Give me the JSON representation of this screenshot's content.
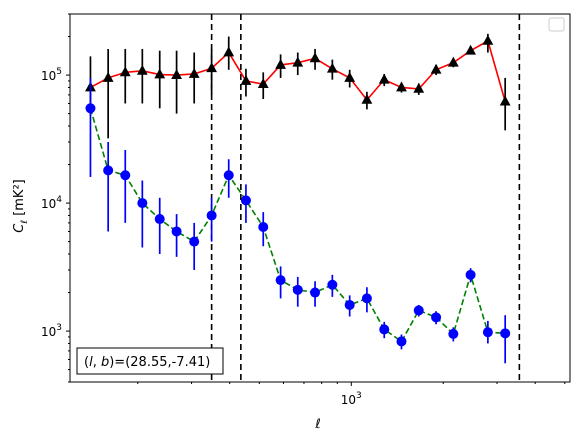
{
  "chart_data": {
    "type": "scatter",
    "xlabel": "ℓ",
    "ylabel": "C",
    "ylabel_sub": "ℓ",
    "ylabel_unit": " [mK²]",
    "xscale": "log",
    "yscale": "log",
    "xlim": [
      120,
      5200
    ],
    "ylim": [
      400,
      300000
    ],
    "x_tick_labels": [
      {
        "base": "10",
        "exp": "3",
        "value": 1000
      }
    ],
    "y_tick_labels": [
      {
        "base": "10",
        "exp": "3",
        "value": 1000
      },
      {
        "base": "10",
        "exp": "4",
        "value": 10000
      },
      {
        "base": "10",
        "exp": "5",
        "value": 100000
      }
    ],
    "annotation": "(l, b)=(28.55,-7.41)",
    "annotation_parts": {
      "prefix": "(",
      "l": "l",
      "sep": ", ",
      "b": "b",
      "suffix": ")=(28.55,-7.41)"
    },
    "legend": {
      "position": "top-right",
      "entries": []
    },
    "vlines": [
      349,
      435,
      3550
    ],
    "series": [
      {
        "color": "#000000",
        "marker": "triangle",
        "line_color": "#ff0000",
        "line_style": "solid",
        "points": [
          {
            "x": 140,
            "y": 80000,
            "lo": 48000,
            "hi": 140000
          },
          {
            "x": 160,
            "y": 95000,
            "lo": 32000,
            "hi": 160000
          },
          {
            "x": 182,
            "y": 105000,
            "lo": 60000,
            "hi": 160000
          },
          {
            "x": 207,
            "y": 108000,
            "lo": 60000,
            "hi": 160000
          },
          {
            "x": 236,
            "y": 101000,
            "lo": 55000,
            "hi": 155000
          },
          {
            "x": 268,
            "y": 100000,
            "lo": 50000,
            "hi": 155000
          },
          {
            "x": 306,
            "y": 102000,
            "lo": 60000,
            "hi": 150000
          },
          {
            "x": 349,
            "y": 113000,
            "lo": 70000,
            "hi": 160000
          },
          {
            "x": 397,
            "y": 150000,
            "lo": 110000,
            "hi": 200000
          },
          {
            "x": 452,
            "y": 90000,
            "lo": 68000,
            "hi": 112000
          },
          {
            "x": 515,
            "y": 85000,
            "lo": 65000,
            "hi": 105000
          },
          {
            "x": 587,
            "y": 120000,
            "lo": 95000,
            "hi": 145000
          },
          {
            "x": 668,
            "y": 125000,
            "lo": 100000,
            "hi": 150000
          },
          {
            "x": 761,
            "y": 135000,
            "lo": 110000,
            "hi": 160000
          },
          {
            "x": 867,
            "y": 112000,
            "lo": 92000,
            "hi": 132000
          },
          {
            "x": 988,
            "y": 95000,
            "lo": 80000,
            "hi": 110000
          },
          {
            "x": 1125,
            "y": 64000,
            "lo": 54000,
            "hi": 74000
          },
          {
            "x": 1282,
            "y": 92000,
            "lo": 82000,
            "hi": 102000
          },
          {
            "x": 1460,
            "y": 80000,
            "lo": 73000,
            "hi": 87000
          },
          {
            "x": 1663,
            "y": 78000,
            "lo": 70000,
            "hi": 86000
          },
          {
            "x": 1895,
            "y": 110000,
            "lo": 100000,
            "hi": 120000
          },
          {
            "x": 2158,
            "y": 125000,
            "lo": 115000,
            "hi": 135000
          },
          {
            "x": 2458,
            "y": 155000,
            "lo": 145000,
            "hi": 165000
          },
          {
            "x": 2800,
            "y": 185000,
            "lo": 150000,
            "hi": 210000
          },
          {
            "x": 3190,
            "y": 62000,
            "lo": 37000,
            "hi": 95000
          }
        ]
      },
      {
        "color": "#0000ff",
        "marker": "circle",
        "line_color": "#008000",
        "line_style": "dashed",
        "points": [
          {
            "x": 140,
            "y": 55000,
            "lo": 16000,
            "hi": 95000
          },
          {
            "x": 160,
            "y": 18000,
            "lo": 6000,
            "hi": 30000
          },
          {
            "x": 182,
            "y": 16500,
            "lo": 7000,
            "hi": 26000
          },
          {
            "x": 207,
            "y": 10000,
            "lo": 4500,
            "hi": 15000
          },
          {
            "x": 236,
            "y": 7500,
            "lo": 4000,
            "hi": 11000
          },
          {
            "x": 268,
            "y": 6000,
            "lo": 3800,
            "hi": 8200
          },
          {
            "x": 306,
            "y": 5000,
            "lo": 3000,
            "hi": 7000
          },
          {
            "x": 349,
            "y": 8000,
            "lo": 5000,
            "hi": 11000
          },
          {
            "x": 397,
            "y": 16500,
            "lo": 11000,
            "hi": 22000
          },
          {
            "x": 452,
            "y": 10500,
            "lo": 7000,
            "hi": 14000
          },
          {
            "x": 515,
            "y": 6500,
            "lo": 4600,
            "hi": 8500
          },
          {
            "x": 587,
            "y": 2500,
            "lo": 1800,
            "hi": 3200
          },
          {
            "x": 668,
            "y": 2100,
            "lo": 1550,
            "hi": 2650
          },
          {
            "x": 761,
            "y": 2000,
            "lo": 1550,
            "hi": 2450
          },
          {
            "x": 867,
            "y": 2300,
            "lo": 1850,
            "hi": 2750
          },
          {
            "x": 988,
            "y": 1600,
            "lo": 1300,
            "hi": 1900
          },
          {
            "x": 1125,
            "y": 1800,
            "lo": 1400,
            "hi": 2200
          },
          {
            "x": 1282,
            "y": 1030,
            "lo": 880,
            "hi": 1180
          },
          {
            "x": 1460,
            "y": 830,
            "lo": 720,
            "hi": 940
          },
          {
            "x": 1663,
            "y": 1450,
            "lo": 1300,
            "hi": 1600
          },
          {
            "x": 1895,
            "y": 1280,
            "lo": 1130,
            "hi": 1430
          },
          {
            "x": 2158,
            "y": 950,
            "lo": 830,
            "hi": 1070
          },
          {
            "x": 2458,
            "y": 2750,
            "lo": 2400,
            "hi": 3100
          },
          {
            "x": 2800,
            "y": 980,
            "lo": 800,
            "hi": 1200
          },
          {
            "x": 3190,
            "y": 960,
            "lo": 560,
            "hi": 1330
          }
        ]
      }
    ]
  }
}
